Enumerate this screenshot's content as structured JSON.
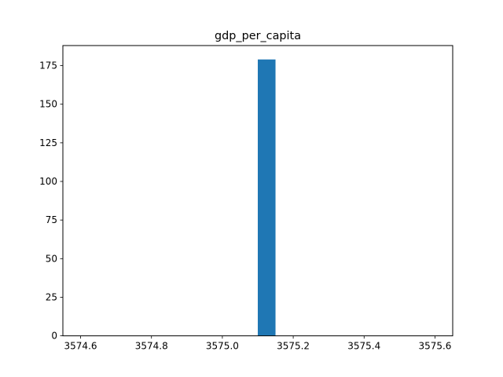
{
  "chart_data": {
    "type": "bar",
    "title": "gdp_per_capita",
    "xlabel": "",
    "ylabel": "",
    "xlim": [
      3574.55,
      3575.65
    ],
    "ylim": [
      0,
      188
    ],
    "x_ticks": [
      3574.6,
      3574.8,
      3575.0,
      3575.2,
      3575.4,
      3575.6
    ],
    "x_tick_labels": [
      "3574.6",
      "3574.8",
      "3575.0",
      "3575.2",
      "3575.4",
      "3575.6"
    ],
    "y_ticks": [
      0,
      25,
      50,
      75,
      100,
      125,
      150,
      175
    ],
    "y_tick_labels": [
      "0",
      "25",
      "50",
      "75",
      "100",
      "125",
      "150",
      "175"
    ],
    "bars": [
      {
        "x0": 3575.1,
        "x1": 3575.15,
        "value": 179
      }
    ],
    "grid": false,
    "colors": {
      "bar": "#1f77b4",
      "axes": "#000000",
      "background": "#ffffff"
    }
  }
}
